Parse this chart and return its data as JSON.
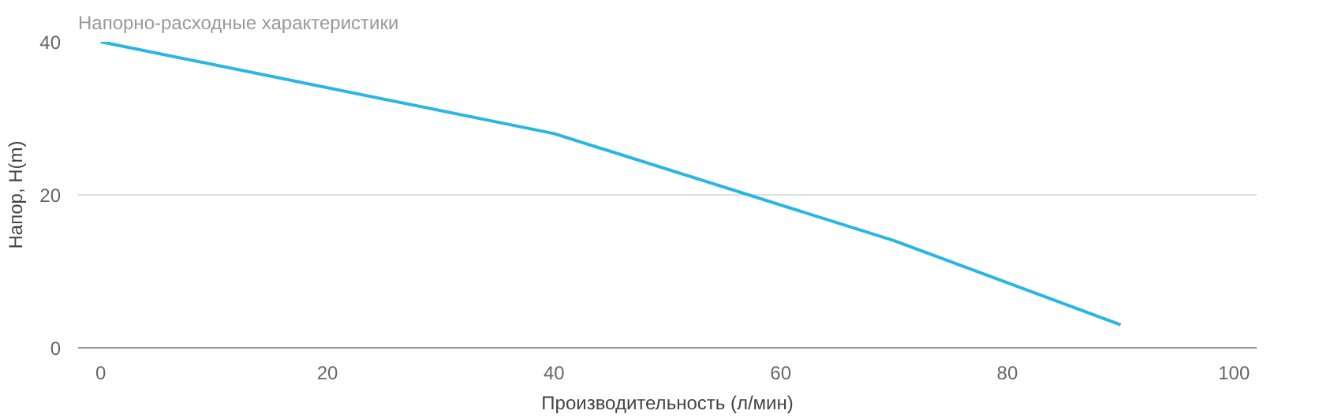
{
  "chart_data": {
    "type": "line",
    "title": "Напорно-расходные характеристики",
    "xlabel": "Производительность (л/мин)",
    "ylabel": "Напор, H(m)",
    "x": [
      0,
      40,
      70,
      90
    ],
    "series": [
      {
        "color": "#29b6e3",
        "values": [
          40,
          28,
          14,
          3
        ]
      }
    ],
    "xlim": [
      -2,
      102
    ],
    "xticks": [
      0,
      20,
      40,
      60,
      80,
      100
    ],
    "ylim": [
      0,
      40
    ],
    "yticks": [
      0,
      20,
      40
    ],
    "grid": "y",
    "marker": "none"
  }
}
